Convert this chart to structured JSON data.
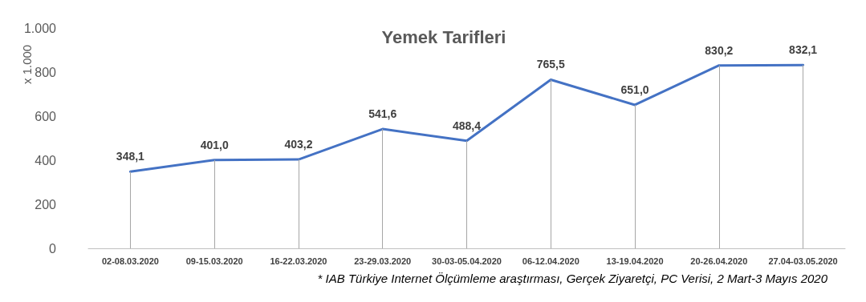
{
  "chart_data": {
    "type": "line",
    "title": "Yemek Tarifleri",
    "ylabel": "x 1.000",
    "categories": [
      "02-08.03.2020",
      "09-15.03.2020",
      "16-22.03.2020",
      "23-29.03.2020",
      "30-03-05.04.2020",
      "06-12.04.2020",
      "13-19.04.2020",
      "20-26.04.2020",
      "27.04-03.05.2020"
    ],
    "series": [
      {
        "color": "#4472c4",
        "values": [
          348.1,
          401.0,
          403.2,
          541.6,
          488.4,
          765.5,
          651.0,
          830.2,
          832.1
        ],
        "value_labels": [
          "348,1",
          "401,0",
          "403,2",
          "541,6",
          "488,4",
          "765,5",
          "651,0",
          "830,2",
          "832,1"
        ]
      }
    ],
    "ylim": [
      0,
      1000
    ],
    "yticks": [
      0,
      200,
      400,
      600,
      800,
      {
        "value": 1000,
        "label": "1.000"
      }
    ],
    "grid": "x",
    "marker": "none",
    "line_style": "solid",
    "annotations": [
      "* IAB Türkiye Internet Ölçümleme araştırması, Gerçek Ziyaretçi, PC Verisi, 2 Mart-3 Mayıs 2020"
    ]
  }
}
